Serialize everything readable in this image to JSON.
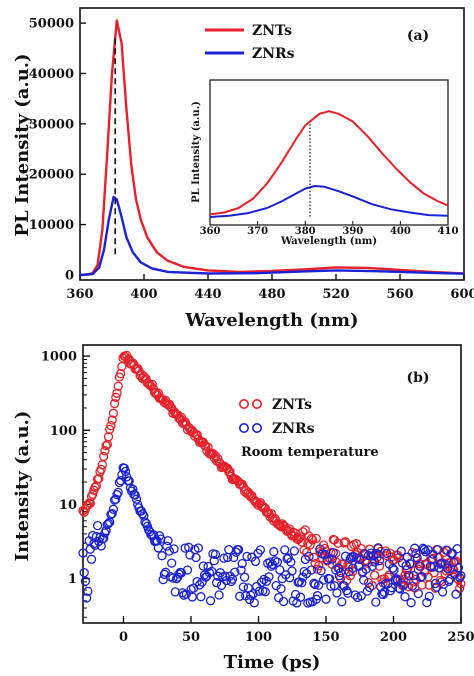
{
  "colors": {
    "znts": "#e8202a",
    "znrs": "#1a22d6",
    "axis": "#111111"
  },
  "chart_data": [
    {
      "panel": "top",
      "type": "line",
      "panel_label": "(a)",
      "xlabel": "Wavelength (nm)",
      "ylabel": "PL Intensity (a.u.)",
      "xlim": [
        360,
        600
      ],
      "ylim": [
        -1000,
        53000
      ],
      "x_ticks": [
        "360",
        "400",
        "440",
        "480",
        "520",
        "560",
        "600"
      ],
      "y_ticks": [
        "0",
        "10000",
        "20000",
        "30000",
        "40000",
        "50000"
      ],
      "legend_position": "top-center",
      "dashed_marker_x": 382,
      "series": [
        {
          "name": "ZNTs",
          "color": "#e8202a",
          "points": [
            [
              360,
              0
            ],
            [
              365,
              100
            ],
            [
              368,
              400
            ],
            [
              371,
              2000
            ],
            [
              374,
              9000
            ],
            [
              377,
              24000
            ],
            [
              380,
              40000
            ],
            [
              383,
              50500
            ],
            [
              386,
              46000
            ],
            [
              389,
              33000
            ],
            [
              392,
              22000
            ],
            [
              395,
              15000
            ],
            [
              398,
              11000
            ],
            [
              402,
              7500
            ],
            [
              408,
              4500
            ],
            [
              415,
              2800
            ],
            [
              425,
              1600
            ],
            [
              440,
              900
            ],
            [
              460,
              600
            ],
            [
              480,
              800
            ],
            [
              500,
              1100
            ],
            [
              520,
              1500
            ],
            [
              540,
              1400
            ],
            [
              560,
              1000
            ],
            [
              580,
              600
            ],
            [
              600,
              300
            ]
          ]
        },
        {
          "name": "ZNRs",
          "color": "#1a22d6",
          "points": [
            [
              360,
              0
            ],
            [
              368,
              200
            ],
            [
              372,
              1500
            ],
            [
              375,
              5000
            ],
            [
              378,
              11000
            ],
            [
              381,
              15500
            ],
            [
              383,
              15000
            ],
            [
              386,
              11500
            ],
            [
              389,
              7500
            ],
            [
              393,
              4500
            ],
            [
              398,
              2500
            ],
            [
              405,
              1300
            ],
            [
              415,
              600
            ],
            [
              440,
              300
            ],
            [
              470,
              350
            ],
            [
              500,
              700
            ],
            [
              520,
              900
            ],
            [
              545,
              750
            ],
            [
              575,
              450
            ],
            [
              600,
              250
            ]
          ]
        }
      ]
    },
    {
      "panel": "inset",
      "type": "line",
      "xlabel": "Wavelength (nm)",
      "ylabel": "PL Intensity (a.u.)",
      "xlim": [
        360,
        410
      ],
      "x_ticks": [
        "360",
        "370",
        "380",
        "390",
        "400",
        "410"
      ],
      "dotted_marker_x": 381,
      "series": [
        {
          "name": "ZNTs",
          "color": "#e8202a",
          "points": [
            [
              360,
              0.02
            ],
            [
              363,
              0.035
            ],
            [
              366,
              0.07
            ],
            [
              369,
              0.14
            ],
            [
              372,
              0.26
            ],
            [
              375,
              0.42
            ],
            [
              378,
              0.6
            ],
            [
              380,
              0.71
            ],
            [
              382,
              0.77
            ],
            [
              383,
              0.8
            ],
            [
              385,
              0.82
            ],
            [
              387,
              0.8
            ],
            [
              390,
              0.74
            ],
            [
              393,
              0.63
            ],
            [
              396,
              0.5
            ],
            [
              399,
              0.38
            ],
            [
              402,
              0.27
            ],
            [
              405,
              0.18
            ],
            [
              408,
              0.12
            ],
            [
              410,
              0.09
            ]
          ]
        },
        {
          "name": "ZNRs",
          "color": "#1a22d6",
          "points": [
            [
              360,
              0.0
            ],
            [
              364,
              0.01
            ],
            [
              368,
              0.03
            ],
            [
              372,
              0.07
            ],
            [
              375,
              0.12
            ],
            [
              378,
              0.18
            ],
            [
              380,
              0.22
            ],
            [
              382,
              0.24
            ],
            [
              384,
              0.235
            ],
            [
              387,
              0.2
            ],
            [
              390,
              0.16
            ],
            [
              394,
              0.1
            ],
            [
              398,
              0.06
            ],
            [
              402,
              0.035
            ],
            [
              406,
              0.015
            ],
            [
              410,
              0.01
            ]
          ]
        }
      ]
    },
    {
      "panel": "bottom",
      "type": "scatter",
      "panel_label": "(b)",
      "xlabel": "Time (ps)",
      "ylabel": "Intensity (a.u.)",
      "xlim": [
        -30,
        250
      ],
      "ylim_log10": [
        -0.6,
        3.15
      ],
      "x_ticks": [
        "0",
        "50",
        "100",
        "150",
        "200",
        "250"
      ],
      "y_ticks": [
        "1",
        "10",
        "100",
        "1000"
      ],
      "annotation": "Room temperature",
      "legend_position": "top-right",
      "marker": "open-circle",
      "series": [
        {
          "name": "ZNTs",
          "color": "#e8202a",
          "model": {
            "rise_start": -30,
            "peak_x": 0,
            "peak": 1050,
            "baseline_start": 8,
            "tau_ps": 21,
            "floor": 1.3
          }
        },
        {
          "name": "ZNRs",
          "color": "#1a22d6",
          "model": {
            "rise_start": -30,
            "peak_x": 0,
            "peak": 30,
            "baseline_start": 1.2,
            "tau_ps": 9,
            "floor": 1.1
          }
        }
      ]
    }
  ]
}
